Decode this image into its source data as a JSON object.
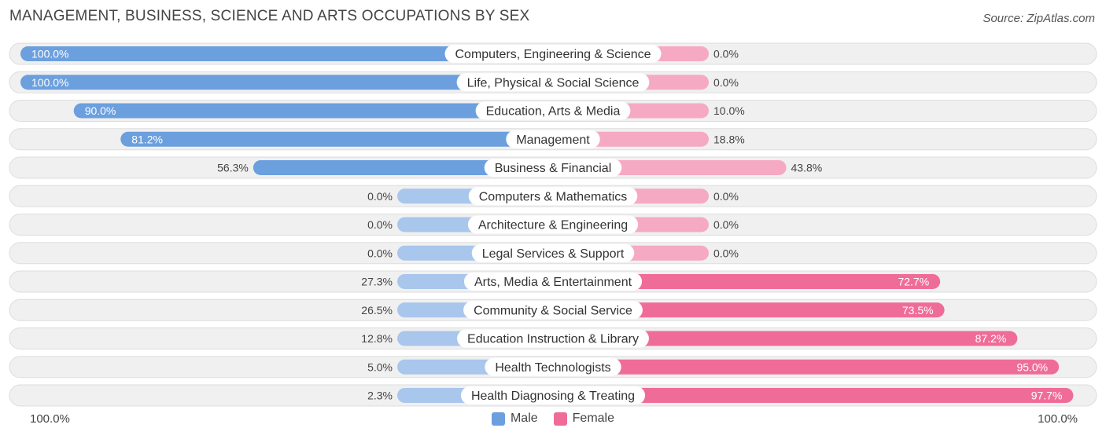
{
  "title": "MANAGEMENT, BUSINESS, SCIENCE AND ARTS OCCUPATIONS BY SEX",
  "source": "Source: ZipAtlas.com",
  "colors": {
    "male_strong": "#6b9fde",
    "male_light": "#a9c6ec",
    "female_strong": "#f06c98",
    "female_light": "#f6a9c3",
    "row_bg": "#f0f0f0",
    "row_border": "#dddddd"
  },
  "legend": {
    "male": "Male",
    "female": "Female"
  },
  "axis": {
    "left_label": "100.0%",
    "right_label": "100.0%"
  },
  "chart_data": {
    "type": "bar",
    "orientation": "horizontal-diverging",
    "title": "MANAGEMENT, BUSINESS, SCIENCE AND ARTS OCCUPATIONS BY SEX",
    "xlim": [
      -100,
      100
    ],
    "categories": [
      "Computers, Engineering & Science",
      "Life, Physical & Social Science",
      "Education, Arts & Media",
      "Management",
      "Business & Financial",
      "Computers & Mathematics",
      "Architecture & Engineering",
      "Legal Services & Support",
      "Arts, Media & Entertainment",
      "Community & Social Service",
      "Education Instruction & Library",
      "Health Technologists",
      "Health Diagnosing & Treating"
    ],
    "series": [
      {
        "name": "Male",
        "values": [
          100.0,
          100.0,
          90.0,
          81.2,
          56.3,
          0.0,
          0.0,
          0.0,
          27.3,
          26.5,
          12.8,
          5.0,
          2.3
        ],
        "labels": [
          "100.0%",
          "100.0%",
          "90.0%",
          "81.2%",
          "56.3%",
          "0.0%",
          "0.0%",
          "0.0%",
          "27.3%",
          "26.5%",
          "12.8%",
          "5.0%",
          "2.3%"
        ]
      },
      {
        "name": "Female",
        "values": [
          0.0,
          0.0,
          10.0,
          18.8,
          43.8,
          0.0,
          0.0,
          0.0,
          72.7,
          73.5,
          87.2,
          95.0,
          97.7
        ],
        "labels": [
          "0.0%",
          "0.0%",
          "10.0%",
          "18.8%",
          "43.8%",
          "0.0%",
          "0.0%",
          "0.0%",
          "72.7%",
          "73.5%",
          "87.2%",
          "95.0%",
          "97.7%"
        ]
      }
    ]
  }
}
